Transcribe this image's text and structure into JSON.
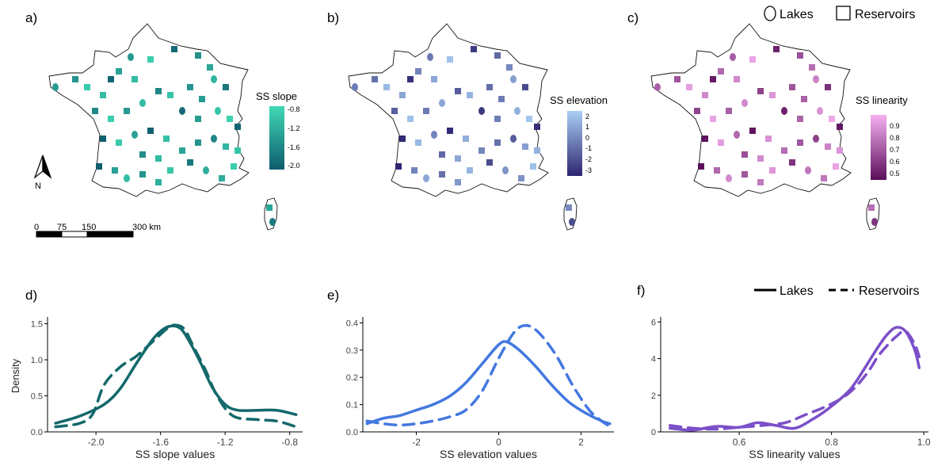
{
  "panels": {
    "labels": [
      "a)",
      "b)",
      "c)",
      "d)",
      "e)",
      "f)"
    ]
  },
  "map_legend": {
    "lakes": "Lakes",
    "reservoirs": "Reservoirs"
  },
  "density_legend": {
    "lakes": "Lakes",
    "reservoirs": "Reservoirs"
  },
  "north_label": "N",
  "scalebar": {
    "labels": [
      "0",
      "75",
      "150",
      "300 km"
    ]
  },
  "colorbars": [
    {
      "title": "SS slope",
      "ticks": [
        "-0.8",
        "-1.2",
        "-1.6",
        "-2.0"
      ],
      "colors": [
        "#3fd9b4",
        "#0e5c6e"
      ]
    },
    {
      "title": "SS elevation",
      "ticks": [
        "2",
        "1",
        "0",
        "-1",
        "-2",
        "-3"
      ],
      "colors": [
        "#a9cff5",
        "#2d2570"
      ]
    },
    {
      "title": "SS linearity",
      "ticks": [
        "0.9",
        "0.8",
        "0.7",
        "0.6",
        "0.5"
      ],
      "colors": [
        "#f6b0f0",
        "#5a0e5a"
      ]
    }
  ],
  "chart_data": [
    {
      "type": "line",
      "panel": "d)",
      "xlabel": "SS slope values",
      "ylabel": "Density",
      "xlim": [
        -2.3,
        -0.72
      ],
      "ylim": [
        0,
        1.55
      ],
      "xticks": [
        -2.0,
        -1.6,
        -1.2,
        -0.8
      ],
      "xtick_labels": [
        "-2.0",
        "-1.6",
        "-1.2",
        "-0.8"
      ],
      "yticks": [
        0.0,
        0.5,
        1.0,
        1.5
      ],
      "ytick_labels": [
        "0.0",
        "0.5",
        "1.0",
        "1.5"
      ],
      "color": "#13686b",
      "series": [
        {
          "name": "Lakes",
          "dash": false,
          "x": [
            -2.25,
            -2.1,
            -1.95,
            -1.85,
            -1.75,
            -1.65,
            -1.58,
            -1.52,
            -1.47,
            -1.42,
            -1.35,
            -1.28,
            -1.2,
            -1.12,
            -1.0,
            -0.88,
            -0.76
          ],
          "y": [
            0.12,
            0.22,
            0.38,
            0.6,
            0.95,
            1.28,
            1.43,
            1.47,
            1.42,
            1.25,
            0.95,
            0.62,
            0.38,
            0.3,
            0.3,
            0.3,
            0.24
          ]
        },
        {
          "name": "Reservoirs",
          "dash": true,
          "x": [
            -2.25,
            -2.1,
            -2.02,
            -1.95,
            -1.85,
            -1.75,
            -1.65,
            -1.55,
            -1.5,
            -1.45,
            -1.4,
            -1.32,
            -1.25,
            -1.15,
            -1.0,
            -0.88,
            -0.76
          ],
          "y": [
            0.07,
            0.12,
            0.25,
            0.65,
            0.9,
            1.05,
            1.25,
            1.45,
            1.48,
            1.42,
            1.2,
            0.85,
            0.5,
            0.22,
            0.17,
            0.15,
            0.07
          ]
        }
      ]
    },
    {
      "type": "line",
      "panel": "e)",
      "xlabel": "SS elevation values",
      "ylabel": "",
      "xlim": [
        -3.3,
        2.8
      ],
      "ylim": [
        0,
        0.41
      ],
      "xticks": [
        -2,
        0,
        2
      ],
      "xtick_labels": [
        "-2",
        "0",
        "2"
      ],
      "yticks": [
        0.0,
        0.1,
        0.2,
        0.3,
        0.4
      ],
      "ytick_labels": [
        "0.0",
        "0.1",
        "0.2",
        "0.3",
        "0.4"
      ],
      "color": "#4378e0",
      "series": [
        {
          "name": "Lakes",
          "dash": false,
          "x": [
            -3.2,
            -2.8,
            -2.4,
            -2.0,
            -1.6,
            -1.2,
            -0.8,
            -0.4,
            0.0,
            0.2,
            0.5,
            0.9,
            1.3,
            1.7,
            2.1,
            2.5,
            2.7
          ],
          "y": [
            0.03,
            0.05,
            0.06,
            0.08,
            0.1,
            0.13,
            0.18,
            0.25,
            0.32,
            0.33,
            0.3,
            0.24,
            0.17,
            0.11,
            0.07,
            0.04,
            0.03
          ]
        },
        {
          "name": "Reservoirs",
          "dash": true,
          "x": [
            -3.2,
            -2.8,
            -2.4,
            -2.0,
            -1.6,
            -1.2,
            -0.8,
            -0.4,
            0.0,
            0.4,
            0.7,
            1.0,
            1.4,
            1.8,
            2.2,
            2.5,
            2.7
          ],
          "y": [
            0.04,
            0.03,
            0.025,
            0.03,
            0.04,
            0.055,
            0.08,
            0.15,
            0.27,
            0.37,
            0.39,
            0.36,
            0.28,
            0.17,
            0.08,
            0.04,
            0.02
          ]
        }
      ]
    },
    {
      "type": "line",
      "panel": "f)",
      "xlabel": "SS linearity values",
      "ylabel": "",
      "xlim": [
        0.43,
        1.01
      ],
      "ylim": [
        0,
        6.1
      ],
      "xticks": [
        0.6,
        0.8,
        1.0
      ],
      "xtick_labels": [
        "0.6",
        "0.8",
        "1.0"
      ],
      "yticks": [
        0,
        2,
        4,
        6
      ],
      "ytick_labels": [
        "0",
        "2",
        "4",
        "6"
      ],
      "color": "#7b4fc9",
      "series": [
        {
          "name": "Lakes",
          "dash": false,
          "x": [
            0.45,
            0.5,
            0.55,
            0.6,
            0.64,
            0.68,
            0.72,
            0.76,
            0.8,
            0.84,
            0.87,
            0.9,
            0.92,
            0.94,
            0.96,
            0.98,
            0.99
          ],
          "y": [
            0.2,
            0.1,
            0.3,
            0.25,
            0.5,
            0.35,
            0.2,
            0.7,
            1.4,
            2.3,
            3.4,
            4.6,
            5.3,
            5.7,
            5.5,
            4.5,
            3.5
          ]
        },
        {
          "name": "Reservoirs",
          "dash": true,
          "x": [
            0.45,
            0.5,
            0.55,
            0.6,
            0.65,
            0.7,
            0.74,
            0.78,
            0.82,
            0.85,
            0.88,
            0.9,
            0.92,
            0.94,
            0.96,
            0.98,
            0.99
          ],
          "y": [
            0.35,
            0.2,
            0.15,
            0.25,
            0.35,
            0.5,
            0.9,
            1.3,
            1.8,
            2.4,
            3.3,
            4.1,
            4.7,
            5.2,
            5.5,
            4.8,
            4.1
          ]
        }
      ]
    }
  ]
}
